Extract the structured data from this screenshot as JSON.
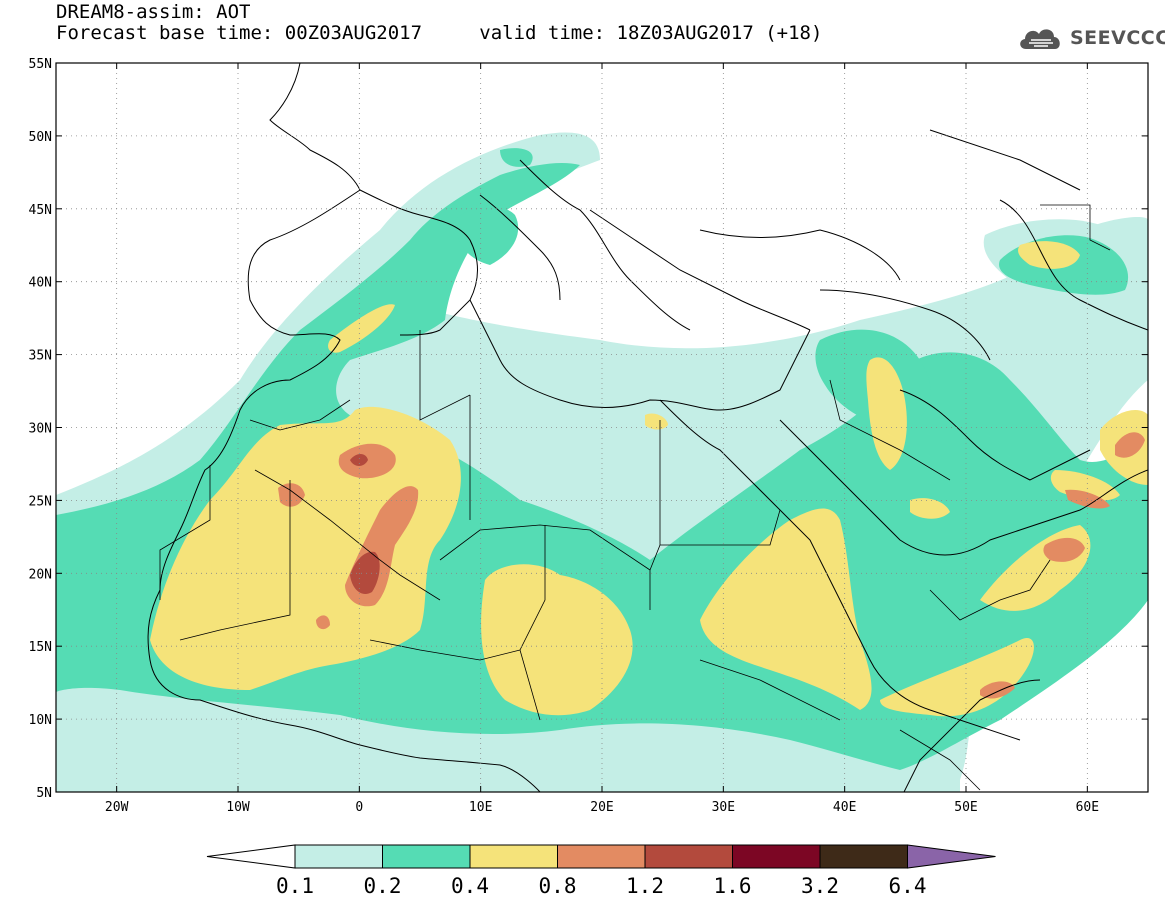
{
  "title": {
    "line1": "DREAM8-assim: AOT",
    "base_label": "Forecast base time: 00Z03AUG2017",
    "valid_label": "valid time: 18Z03AUG2017 (+18)"
  },
  "logo": {
    "text": "SEEVCCC",
    "icon": "cloud-icon",
    "color": "#555555"
  },
  "map": {
    "lon_ticks": [
      "20W",
      "10W",
      "0",
      "10E",
      "20E",
      "30E",
      "40E",
      "50E",
      "60E"
    ],
    "lat_ticks": [
      "55N",
      "50N",
      "45N",
      "40N",
      "35N",
      "30N",
      "25N",
      "20N",
      "15N",
      "10N",
      "5N"
    ],
    "lon_values": [
      -20,
      -10,
      0,
      10,
      20,
      30,
      40,
      50,
      60
    ],
    "lat_values": [
      55,
      50,
      45,
      40,
      35,
      30,
      25,
      20,
      15,
      10,
      5
    ],
    "extent": {
      "lon": [
        -25,
        65
      ],
      "lat": [
        5,
        55
      ]
    },
    "grid": true
  },
  "colorbar": {
    "labels": [
      "0.1",
      "0.2",
      "0.4",
      "0.8",
      "1.2",
      "1.6",
      "3.2",
      "6.4"
    ],
    "colors": [
      "#ffffff",
      "#c4eee6",
      "#55dcb4",
      "#f5e37a",
      "#e38b62",
      "#b34a3d",
      "#7c0624",
      "#3e2a18",
      "#8a64a8"
    ]
  }
}
